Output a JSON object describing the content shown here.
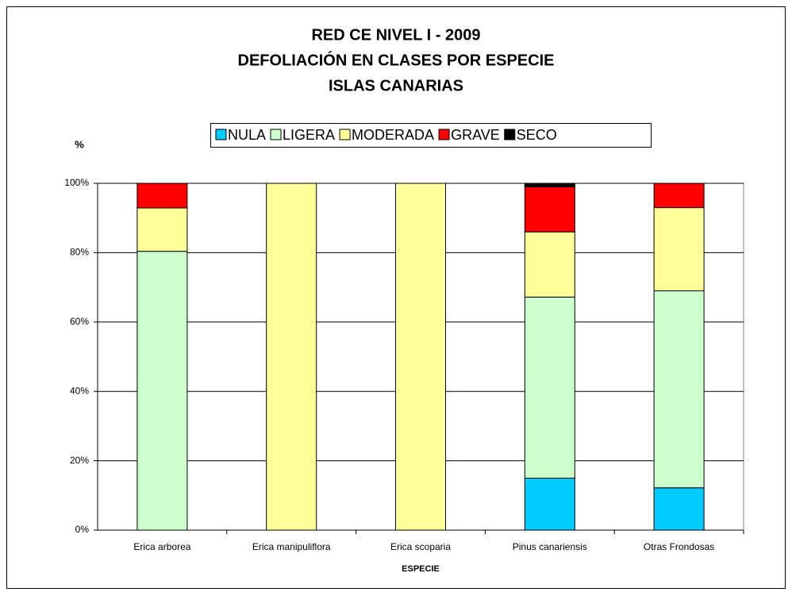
{
  "chart_data": {
    "type": "stacked_bar",
    "title": [
      "RED CE NIVEL I - 2009",
      "DEFOLIACIÓN EN CLASES POR ESPECIE",
      "ISLAS CANARIAS"
    ],
    "y_label": "%",
    "x_label": "ESPECIE",
    "categories": [
      "Erica arborea",
      "Erica manipuliflora",
      "Erica scoparia",
      "Pinus canariensis",
      "Otras Frondosas"
    ],
    "series": [
      {
        "name": "NULA",
        "color": "#00ccff",
        "values": [
          0,
          0,
          0,
          15.0,
          12.2
        ]
      },
      {
        "name": "LIGERA",
        "color": "#ccffcc",
        "values": [
          80.4,
          0,
          0,
          52.2,
          56.8
        ]
      },
      {
        "name": "MODERADA",
        "color": "#ffff99",
        "values": [
          12.5,
          100,
          100,
          18.8,
          24.0
        ]
      },
      {
        "name": "GRAVE",
        "color": "#ff0000",
        "values": [
          7.1,
          0,
          0,
          13.0,
          7.0
        ]
      },
      {
        "name": "SECO",
        "color": "#000000",
        "values": [
          0,
          0,
          0,
          1.0,
          0
        ]
      }
    ],
    "ylim": [
      0,
      100
    ],
    "yticks": [
      {
        "value": 0,
        "label": "0%"
      },
      {
        "value": 20,
        "label": "20%"
      },
      {
        "value": 40,
        "label": "40%"
      },
      {
        "value": 60,
        "label": "60%"
      },
      {
        "value": 80,
        "label": "80%"
      },
      {
        "value": 100,
        "label": "100%"
      }
    ],
    "grid": true,
    "legend": "top"
  }
}
